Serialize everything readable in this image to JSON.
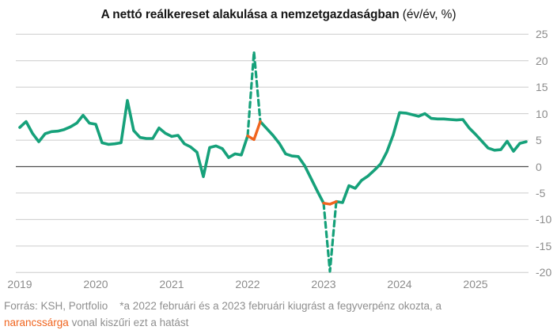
{
  "title": {
    "main": "A nettó reálkereset alakulása a nemzetgazdaságban",
    "suffix": " (év/év, %)"
  },
  "footer": {
    "source": "Forrás: KSH, Portfolio",
    "note_line1": "*a 2022 februári és a 2023 februári kiugrást a fegyverpénz okozta, a",
    "note_highlight": "narancssárga",
    "note_line2_rest": " vonal kiszűri ezt a hatást"
  },
  "chart_data": {
    "type": "line",
    "title": "A nettó reálkereset alakulása a nemzetgazdaságban (év/év, %)",
    "x_start": "2019-01",
    "x_frequency": "monthly",
    "x_tick_years": [
      "2019",
      "2020",
      "2021",
      "2022",
      "2023",
      "2024",
      "2025"
    ],
    "yticks": [
      25,
      20,
      15,
      10,
      5,
      0,
      -5,
      -10,
      -15,
      -20
    ],
    "ylim": [
      -20,
      25
    ],
    "grid": "horizontal",
    "legend": "none",
    "series": [
      {
        "name": "nettó reálkereset év/év %",
        "style": "solid-with-dashed-spikes",
        "color_key": "green",
        "values": [
          7.4,
          8.5,
          6.3,
          4.7,
          6.2,
          6.6,
          6.7,
          7.0,
          7.5,
          8.2,
          9.7,
          8.2,
          8.0,
          4.5,
          4.2,
          4.3,
          4.5,
          12.5,
          6.8,
          5.5,
          5.3,
          5.3,
          7.3,
          6.3,
          5.7,
          5.9,
          4.3,
          3.7,
          2.7,
          -1.9,
          3.6,
          3.9,
          3.4,
          1.7,
          2.4,
          2.2,
          5.8,
          21.7,
          8.5,
          7.2,
          5.9,
          4.4,
          2.4,
          2.0,
          1.9,
          0.2,
          -2.2,
          -4.6,
          -6.9,
          -19.8,
          -6.6,
          -6.8,
          -3.6,
          -4.1,
          -2.6,
          -1.8,
          -0.7,
          0.5,
          2.8,
          6.0,
          10.2,
          10.1,
          9.8,
          9.5,
          10.0,
          9.1,
          9.0,
          9.0,
          8.9,
          8.8,
          8.9,
          7.3,
          6.1,
          4.8,
          3.5,
          3.1,
          3.2,
          4.8,
          2.9,
          4.4,
          4.7
        ]
      },
      {
        "name": "fegyverpénz-hatás nélkül (narancssárga)",
        "style": "solid",
        "color_key": "orange",
        "segments": [
          {
            "start_index": 36,
            "values": [
              5.8,
              5.1,
              8.5
            ]
          },
          {
            "start_index": 48,
            "values": [
              -6.9,
              -7.1,
              -6.6
            ]
          }
        ]
      }
    ],
    "dashed_windows": [
      [
        36,
        38
      ],
      [
        48,
        50
      ]
    ],
    "colors": {
      "green": "#16a17a",
      "orange": "#f0641e",
      "gridline": "#cccccc",
      "zero_line": "#4d4d4d",
      "axis_label": "#8c8c8c"
    }
  }
}
